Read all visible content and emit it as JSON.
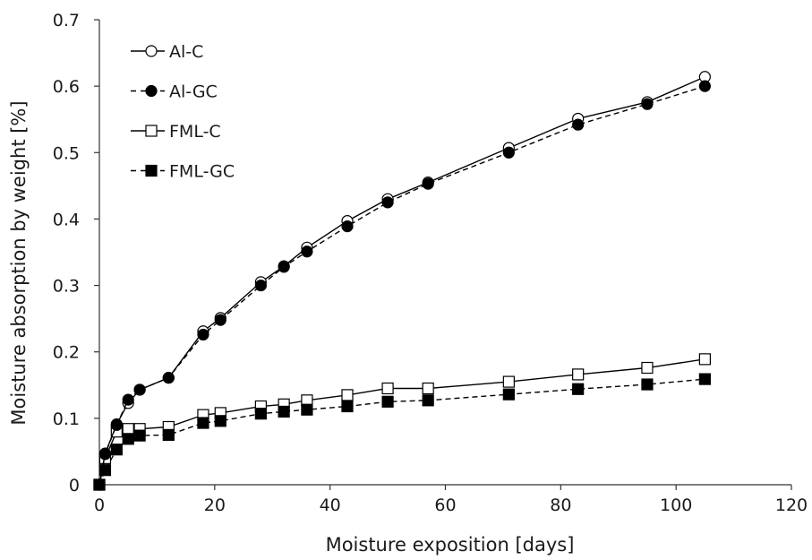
{
  "chart_data": {
    "type": "line",
    "title": "",
    "xlabel": "Moisture exposition [days]",
    "ylabel": "Moisture absorption by weight [%]",
    "xlim": [
      0,
      120
    ],
    "ylim": [
      0,
      0.7
    ],
    "xticks": [
      0,
      20,
      40,
      60,
      80,
      100,
      120
    ],
    "yticks": [
      0,
      0.1,
      0.2,
      0.3,
      0.4,
      0.5,
      0.6,
      0.7
    ],
    "xtick_labels": [
      "0",
      "20",
      "40",
      "60",
      "80",
      "100",
      "120"
    ],
    "ytick_labels": [
      "0",
      "0.1",
      "0.2",
      "0.3",
      "0.4",
      "0.5",
      "0.6",
      "0.7"
    ],
    "grid": false,
    "legend_position": "top-left",
    "series": [
      {
        "name": "Al-C",
        "marker": "open-circle",
        "line": "solid",
        "x": [
          0,
          1,
          3,
          5,
          7,
          12,
          18,
          21,
          28,
          32,
          36,
          43,
          50,
          57,
          71,
          83,
          95,
          105
        ],
        "y": [
          0,
          0.047,
          0.091,
          0.123,
          0.143,
          0.161,
          0.231,
          0.251,
          0.305,
          0.329,
          0.357,
          0.397,
          0.43,
          0.455,
          0.507,
          0.551,
          0.576,
          0.614
        ]
      },
      {
        "name": "Al-GC",
        "marker": "filled-circle",
        "line": "dashed",
        "x": [
          0,
          1,
          3,
          5,
          7,
          12,
          18,
          21,
          28,
          32,
          36,
          43,
          50,
          57,
          71,
          83,
          95,
          105
        ],
        "y": [
          0,
          0.046,
          0.09,
          0.128,
          0.143,
          0.161,
          0.226,
          0.248,
          0.3,
          0.328,
          0.351,
          0.389,
          0.425,
          0.453,
          0.5,
          0.542,
          0.573,
          0.6
        ]
      },
      {
        "name": "FML-C",
        "marker": "open-square",
        "line": "solid",
        "x": [
          0,
          1,
          3,
          5,
          7,
          12,
          18,
          21,
          28,
          32,
          36,
          43,
          50,
          57,
          71,
          83,
          95,
          105
        ],
        "y": [
          0,
          0.04,
          0.08,
          0.084,
          0.084,
          0.087,
          0.105,
          0.108,
          0.118,
          0.121,
          0.127,
          0.135,
          0.145,
          0.145,
          0.155,
          0.166,
          0.176,
          0.189
        ]
      },
      {
        "name": "FML-GC",
        "marker": "filled-square",
        "line": "dashed",
        "x": [
          0,
          1,
          3,
          5,
          7,
          12,
          18,
          21,
          28,
          32,
          36,
          43,
          50,
          57,
          71,
          83,
          95,
          105
        ],
        "y": [
          0,
          0.022,
          0.053,
          0.069,
          0.074,
          0.075,
          0.093,
          0.096,
          0.107,
          0.11,
          0.113,
          0.118,
          0.125,
          0.127,
          0.136,
          0.144,
          0.151,
          0.159
        ]
      }
    ]
  },
  "colors": {
    "marker_fill_filled": "#000000",
    "marker_fill_open": "#ffffff",
    "line": "#000000",
    "axis": "#333333"
  }
}
